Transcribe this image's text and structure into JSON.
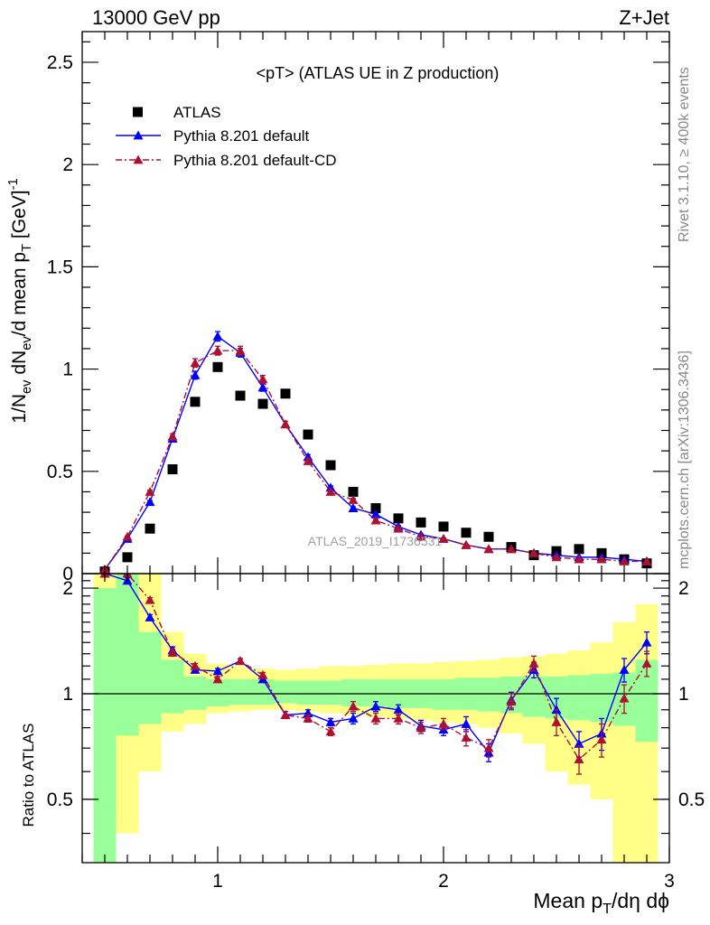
{
  "header": {
    "left": "13000 GeV pp",
    "right": "Z+Jet"
  },
  "side": {
    "top": "Rivet 3.1.10, ≥ 400k events",
    "bottom": "mcplots.cern.ch [arXiv:1306.3436]"
  },
  "chart_data": {
    "type": "scatter",
    "title": "<pT> (ATLAS UE in Z production)",
    "watermark": "ATLAS_2019_I1736531",
    "xlabel": "Mean p_T/dη dϕ",
    "ylabel": "1/N_ev dN_ev/d mean p_T [GeV]^-1",
    "ratio_ylabel": "Ratio to ATLAS",
    "xlim": [
      0.4,
      3.0
    ],
    "ylim": [
      0,
      2.65
    ],
    "ratio_ylim": [
      0.33,
      2.2
    ],
    "x_ticks": [
      1,
      2,
      3
    ],
    "y_ticks": [
      0,
      0.5,
      1,
      1.5,
      2,
      2.5
    ],
    "ratio_ticks": [
      0.5,
      1,
      2
    ],
    "x": [
      0.5,
      0.6,
      0.7,
      0.8,
      0.9,
      1.0,
      1.1,
      1.2,
      1.3,
      1.4,
      1.5,
      1.6,
      1.7,
      1.8,
      1.9,
      2.0,
      2.1,
      2.2,
      2.3,
      2.4,
      2.5,
      2.6,
      2.7,
      2.8,
      2.9
    ],
    "series": [
      {
        "name": "ATLAS",
        "color": "#000000",
        "marker": "square",
        "values": [
          0.01,
          0.08,
          0.22,
          0.51,
          0.84,
          1.01,
          0.87,
          0.83,
          0.88,
          0.68,
          0.53,
          0.4,
          0.32,
          0.27,
          0.25,
          0.23,
          0.2,
          0.18,
          0.13,
          0.09,
          0.11,
          0.12,
          0.1,
          0.07,
          0.05
        ],
        "band_inner": [
          [
            0.33,
            2.0
          ],
          [
            0.76,
            2.2
          ],
          [
            0.82,
            1.5
          ],
          [
            0.88,
            1.25
          ],
          [
            0.9,
            1.12
          ],
          [
            0.92,
            1.1
          ],
          [
            0.93,
            1.1
          ],
          [
            0.93,
            1.1
          ],
          [
            0.94,
            1.09
          ],
          [
            0.93,
            1.09
          ],
          [
            0.93,
            1.09
          ],
          [
            0.92,
            1.1
          ],
          [
            0.92,
            1.1
          ],
          [
            0.91,
            1.1
          ],
          [
            0.91,
            1.1
          ],
          [
            0.9,
            1.1
          ],
          [
            0.9,
            1.11
          ],
          [
            0.89,
            1.11
          ],
          [
            0.88,
            1.12
          ],
          [
            0.86,
            1.12
          ],
          [
            0.85,
            1.12
          ],
          [
            0.84,
            1.13
          ],
          [
            0.83,
            1.14
          ],
          [
            0.81,
            1.15
          ],
          [
            0.73,
            1.25
          ]
        ],
        "band_outer": [
          [
            0.33,
            2.2
          ],
          [
            0.4,
            2.2
          ],
          [
            0.6,
            2.2
          ],
          [
            0.78,
            1.5
          ],
          [
            0.82,
            1.3
          ],
          [
            0.88,
            1.22
          ],
          [
            0.89,
            1.2
          ],
          [
            0.9,
            1.18
          ],
          [
            0.9,
            1.17
          ],
          [
            0.89,
            1.18
          ],
          [
            0.88,
            1.2
          ],
          [
            0.87,
            1.2
          ],
          [
            0.86,
            1.21
          ],
          [
            0.85,
            1.22
          ],
          [
            0.84,
            1.22
          ],
          [
            0.83,
            1.23
          ],
          [
            0.82,
            1.24
          ],
          [
            0.8,
            1.25
          ],
          [
            0.77,
            1.27
          ],
          [
            0.72,
            1.28
          ],
          [
            0.6,
            1.3
          ],
          [
            0.55,
            1.33
          ],
          [
            0.5,
            1.4
          ],
          [
            0.33,
            1.6
          ],
          [
            0.33,
            1.8
          ]
        ]
      },
      {
        "name": "Pythia 8.201 default",
        "color": "#0000ff",
        "marker": "triangle",
        "line": "solid",
        "values": [
          0.02,
          0.17,
          0.35,
          0.66,
          0.97,
          1.16,
          1.08,
          0.91,
          0.73,
          0.57,
          0.42,
          0.32,
          0.29,
          0.23,
          0.19,
          0.17,
          0.14,
          0.12,
          0.12,
          0.1,
          0.09,
          0.08,
          0.08,
          0.07,
          0.06
        ],
        "ratio": [
          2.5,
          2.1,
          1.65,
          1.33,
          1.17,
          1.16,
          1.24,
          1.1,
          0.87,
          0.88,
          0.83,
          0.85,
          0.92,
          0.9,
          0.81,
          0.79,
          0.82,
          0.68,
          0.96,
          1.17,
          0.9,
          0.72,
          0.77,
          1.17,
          1.4
        ],
        "ratio_err": [
          0.05,
          0.04,
          0.03,
          0.03,
          0.02,
          0.02,
          0.02,
          0.02,
          0.02,
          0.02,
          0.02,
          0.03,
          0.03,
          0.03,
          0.03,
          0.03,
          0.04,
          0.04,
          0.05,
          0.06,
          0.07,
          0.06,
          0.08,
          0.09,
          0.1
        ]
      },
      {
        "name": "Pythia 8.201 default-CD",
        "color": "#b01030",
        "marker": "triangle",
        "line": "dash-dot",
        "values": [
          0.02,
          0.18,
          0.4,
          0.67,
          1.03,
          1.09,
          1.09,
          0.95,
          0.73,
          0.55,
          0.4,
          0.36,
          0.26,
          0.22,
          0.18,
          0.17,
          0.14,
          0.12,
          0.12,
          0.1,
          0.08,
          0.07,
          0.07,
          0.06,
          0.06
        ],
        "ratio": [
          2.5,
          2.2,
          1.85,
          1.31,
          1.2,
          1.1,
          1.24,
          1.13,
          0.87,
          0.85,
          0.78,
          0.92,
          0.85,
          0.85,
          0.8,
          0.82,
          0.75,
          0.7,
          0.95,
          1.22,
          0.83,
          0.65,
          0.74,
          0.97,
          1.22
        ]
      }
    ]
  }
}
